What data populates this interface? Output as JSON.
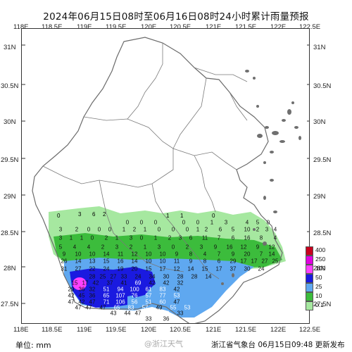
{
  "title": "2024年06月15日08时至06月16日08时24小时累计雨量预报",
  "x_ticks": [
    "118E",
    "118.5E",
    "119E",
    "119.5E",
    "120E",
    "120.5E",
    "121E",
    "121.5E",
    "122E",
    "122.5E"
  ],
  "y_ticks": [
    "31N",
    "30.5N",
    "30N",
    "29.5N",
    "29N",
    "28.5N",
    "28N",
    "27.5N"
  ],
  "unit_label": "单位: mm",
  "watermark": "@浙江天气",
  "issuer": "浙江省气象台 06月15日09:48 更新发布",
  "legend": [
    {
      "label": "400",
      "color": "#c8001e"
    },
    {
      "label": "250",
      "color": "#e000e0"
    },
    {
      "label": "100",
      "color": "#ff40ff"
    },
    {
      "label": "50",
      "color": "#1a1ae0"
    },
    {
      "label": "25",
      "color": "#5fa8f0"
    },
    {
      "label": "10",
      "color": "#3cbc3c"
    },
    {
      "label": "0.1",
      "color": "#a6e8a0"
    }
  ],
  "station_values": [
    {
      "v": "0"
    },
    {
      "v": "3"
    },
    {
      "v": "6"
    },
    {
      "v": "2"
    },
    {
      "v": "1"
    },
    {
      "v": "1"
    },
    {
      "v": "0"
    },
    {
      "v": "0"
    },
    {
      "v": "0"
    },
    {
      "v": "0"
    },
    {
      "v": "0"
    },
    {
      "v": "0"
    },
    {
      "v": "1"
    },
    {
      "v": "3"
    },
    {
      "v": "4"
    },
    {
      "v": "5"
    },
    {
      "v": "0"
    },
    {
      "v": "3"
    },
    {
      "v": "2"
    },
    {
      "v": "0"
    },
    {
      "v": "0"
    },
    {
      "v": "0"
    },
    {
      "v": "1"
    },
    {
      "v": "2"
    },
    {
      "v": "1"
    },
    {
      "v": "0"
    },
    {
      "v": "0"
    },
    {
      "v": "0"
    },
    {
      "v": "1"
    },
    {
      "v": "2"
    },
    {
      "v": "6"
    },
    {
      "v": "5"
    },
    {
      "v": "10"
    },
    {
      "v": "2"
    },
    {
      "v": "3"
    },
    {
      "v": "4"
    },
    {
      "v": "3"
    },
    {
      "v": "1"
    },
    {
      "v": "1"
    },
    {
      "v": "0"
    },
    {
      "v": "2"
    },
    {
      "v": "1"
    },
    {
      "v": "3"
    },
    {
      "v": "0"
    },
    {
      "v": "1"
    },
    {
      "v": "2"
    },
    {
      "v": "3"
    },
    {
      "v": "6"
    },
    {
      "v": "11"
    },
    {
      "v": "7"
    },
    {
      "v": "6"
    },
    {
      "v": "16"
    },
    {
      "v": "8"
    },
    {
      "v": "4"
    },
    {
      "v": "5"
    },
    {
      "v": "4"
    },
    {
      "v": "4"
    },
    {
      "v": "2"
    },
    {
      "v": "3"
    },
    {
      "v": "2"
    },
    {
      "v": "1"
    },
    {
      "v": "3"
    },
    {
      "v": "0"
    },
    {
      "v": "2"
    },
    {
      "v": "3"
    },
    {
      "v": "9"
    },
    {
      "v": "16"
    },
    {
      "v": "12"
    },
    {
      "v": "9"
    },
    {
      "v": "12"
    },
    {
      "v": "9"
    },
    {
      "v": "10"
    },
    {
      "v": "10"
    },
    {
      "v": "14"
    },
    {
      "v": "11"
    },
    {
      "v": "12"
    },
    {
      "v": "10"
    },
    {
      "v": "10"
    },
    {
      "v": "9"
    },
    {
      "v": "8"
    },
    {
      "v": "4"
    },
    {
      "v": "7"
    },
    {
      "v": "9"
    },
    {
      "v": "20"
    },
    {
      "v": "7"
    },
    {
      "v": "14"
    },
    {
      "v": "26"
    },
    {
      "v": "14"
    },
    {
      "v": "13"
    },
    {
      "v": "15"
    },
    {
      "v": "16"
    },
    {
      "v": "14"
    },
    {
      "v": "10"
    },
    {
      "v": "10"
    },
    {
      "v": "11"
    },
    {
      "v": "9"
    },
    {
      "v": "8"
    },
    {
      "v": "6"
    },
    {
      "v": "29"
    },
    {
      "v": "17"
    },
    {
      "v": "17"
    },
    {
      "v": "27"
    },
    {
      "v": "25"
    },
    {
      "v": "31"
    },
    {
      "v": "27"
    },
    {
      "v": "22"
    },
    {
      "v": "24"
    },
    {
      "v": "19"
    },
    {
      "v": "20"
    },
    {
      "v": "15"
    },
    {
      "v": "17"
    },
    {
      "v": "12"
    },
    {
      "v": "14"
    },
    {
      "v": "15"
    },
    {
      "v": "17"
    },
    {
      "v": "37"
    },
    {
      "v": "30"
    },
    {
      "v": "24"
    },
    {
      "v": "28"
    },
    {
      "v": "25"
    },
    {
      "v": "27"
    },
    {
      "v": "33"
    },
    {
      "v": "24"
    },
    {
      "v": "34"
    },
    {
      "v": "30"
    },
    {
      "v": "28"
    },
    {
      "v": "28"
    },
    {
      "v": "14"
    },
    {
      "v": "15"
    },
    {
      "v": "17"
    },
    {
      "v": "42"
    },
    {
      "v": "37"
    },
    {
      "v": "41"
    },
    {
      "v": "69"
    },
    {
      "v": "42"
    },
    {
      "v": "42"
    },
    {
      "v": "32"
    },
    {
      "v": "29"
    },
    {
      "v": "36"
    },
    {
      "v": "32"
    },
    {
      "v": "51"
    },
    {
      "v": "94"
    },
    {
      "v": "100"
    },
    {
      "v": "61"
    },
    {
      "v": "83"
    },
    {
      "v": "42"
    },
    {
      "v": "42"
    },
    {
      "v": "45"
    },
    {
      "v": "36"
    },
    {
      "v": "65"
    },
    {
      "v": "107"
    },
    {
      "v": "76"
    },
    {
      "v": "57"
    },
    {
      "v": "77"
    },
    {
      "v": "53"
    },
    {
      "v": "47"
    },
    {
      "v": "42"
    },
    {
      "v": "47"
    },
    {
      "v": "71"
    },
    {
      "v": "106"
    },
    {
      "v": "56"
    },
    {
      "v": "51"
    },
    {
      "v": "60"
    },
    {
      "v": "47"
    },
    {
      "v": "47"
    },
    {
      "v": "47"
    },
    {
      "v": "47"
    },
    {
      "v": "65"
    },
    {
      "v": "83"
    },
    {
      "v": "57"
    },
    {
      "v": "49"
    },
    {
      "v": "55"
    },
    {
      "v": "53"
    },
    {
      "v": "43"
    },
    {
      "v": "44"
    },
    {
      "v": "47"
    },
    {
      "v": "52"
    },
    {
      "v": "52"
    },
    {
      "v": "33"
    },
    {
      "v": "33"
    },
    {
      "v": "36"
    },
    {
      "v": "55"
    },
    {
      "v": "39"
    },
    {
      "v": "37"
    },
    {
      "v": "39"
    },
    {
      "v": "45"
    },
    {
      "v": "44"
    },
    {
      "v": "33"
    },
    {
      "v": "35"
    },
    {
      "v": "35"
    },
    {
      "v": "47"
    },
    {
      "v": "45"
    },
    {
      "v": "40"
    }
  ]
}
